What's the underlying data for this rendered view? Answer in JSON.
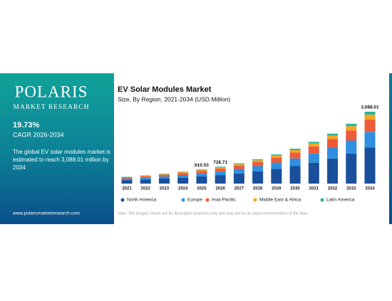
{
  "panel": {
    "brand": "POLARIS",
    "brand_sub": "MARKET RESEARCH",
    "cagr": "19.73%",
    "cagr_label": "CAGR 2026-2034",
    "description": "The global EV solar modules market is estimated to reach 3,088.01 million by 2034",
    "website": "www.polarismarketresearch.com"
  },
  "chart_data": {
    "type": "stacked-bar",
    "title": "EV Solar Modules Market",
    "subtitle": "Size, By Region, 2021-2034 (USD Million)",
    "categories": [
      "2021",
      "2022",
      "2023",
      "2024",
      "2025",
      "2026",
      "2027",
      "2028",
      "2029",
      "2030",
      "2031",
      "2032",
      "2033",
      "2034"
    ],
    "series": [
      {
        "name": "North America",
        "color": "#1a4f9c",
        "values": [
          149,
          178,
          213,
          255,
          305.27,
          364.36,
          436,
          522,
          625,
          749,
          896,
          1073,
          1285,
          1544.01
        ]
      },
      {
        "name": "Europe",
        "color": "#2f8fe0",
        "values": [
          65,
          78,
          94,
          112,
          134.32,
          160.32,
          192,
          230,
          275,
          330,
          394,
          472,
          566,
          679.36
        ]
      },
      {
        "name": "Asia Pacific",
        "color": "#ee5b3b",
        "values": [
          50,
          61,
          72,
          87,
          103.79,
          123.88,
          148,
          178,
          213,
          255,
          305,
          365,
          437,
          524.96
        ]
      },
      {
        "name": "Middle East & Africa",
        "color": "#f5a623",
        "values": [
          21,
          25,
          30,
          36,
          42.74,
          51.01,
          61,
          73,
          88,
          105,
          126,
          150,
          180,
          216.16
        ]
      },
      {
        "name": "Latin America",
        "color": "#27b5a0",
        "values": [
          12,
          14,
          17,
          20,
          24.41,
          29.14,
          35,
          42,
          50,
          60,
          72,
          86,
          103,
          123.52
        ]
      }
    ],
    "totals": [
      null,
      null,
      null,
      null,
      610.53,
      728.71,
      null,
      null,
      null,
      null,
      null,
      null,
      null,
      3088.01
    ],
    "total_labels": [
      null,
      null,
      null,
      null,
      "610.53",
      "728.71",
      null,
      null,
      null,
      null,
      null,
      null,
      null,
      "3,088.01"
    ],
    "note": "Note: The images shown are for illustration purposes only and may not be an exact representation of the data."
  }
}
